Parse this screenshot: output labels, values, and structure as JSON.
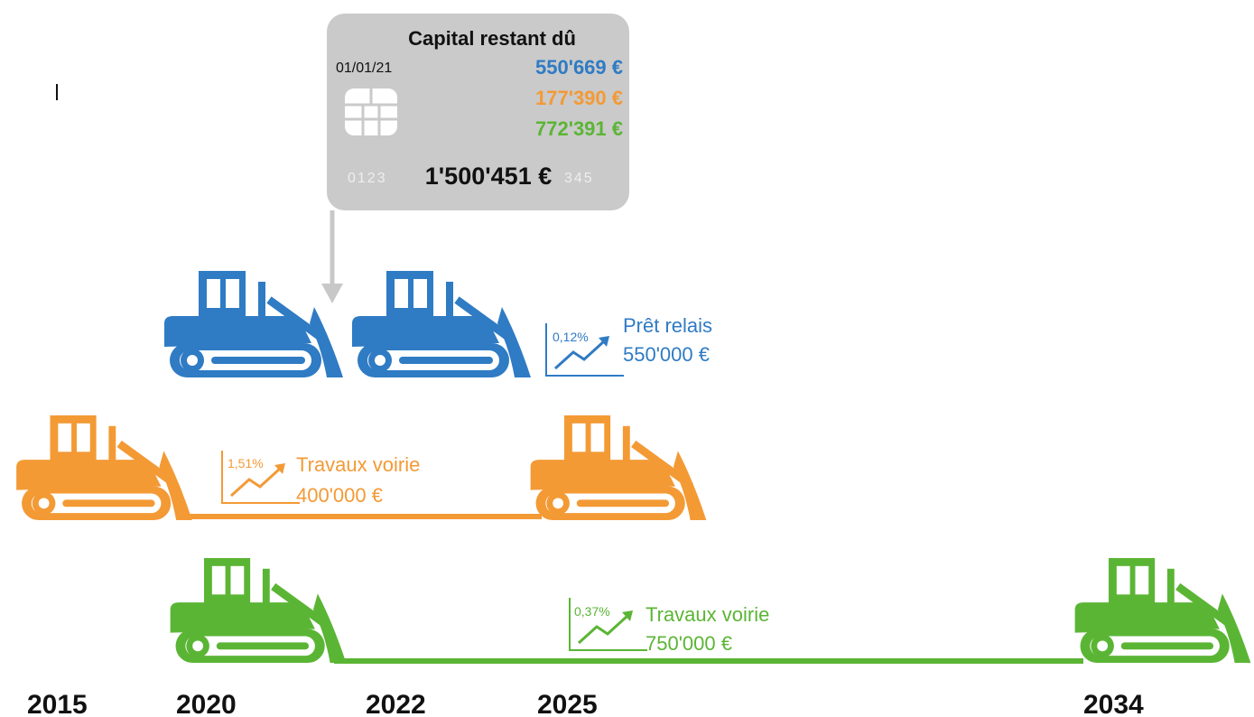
{
  "card": {
    "title": "Capital restant dû",
    "date": "01/01/21",
    "amounts": [
      "550'669 €",
      "177'390 €",
      "772'391 €"
    ],
    "number_left": "0123",
    "number_right": "345",
    "total": "1'500'451 €"
  },
  "loans": [
    {
      "rate": "0,12%",
      "name": "Prêt relais",
      "amount": "550'000 €"
    },
    {
      "rate": "1,51%",
      "name": "Travaux voirie",
      "amount": "400'000 €"
    },
    {
      "rate": "0,37%",
      "name": "Travaux voirie",
      "amount": "750'000 €"
    }
  ],
  "years": [
    "2015",
    "2020",
    "2022",
    "2025",
    "2034"
  ]
}
